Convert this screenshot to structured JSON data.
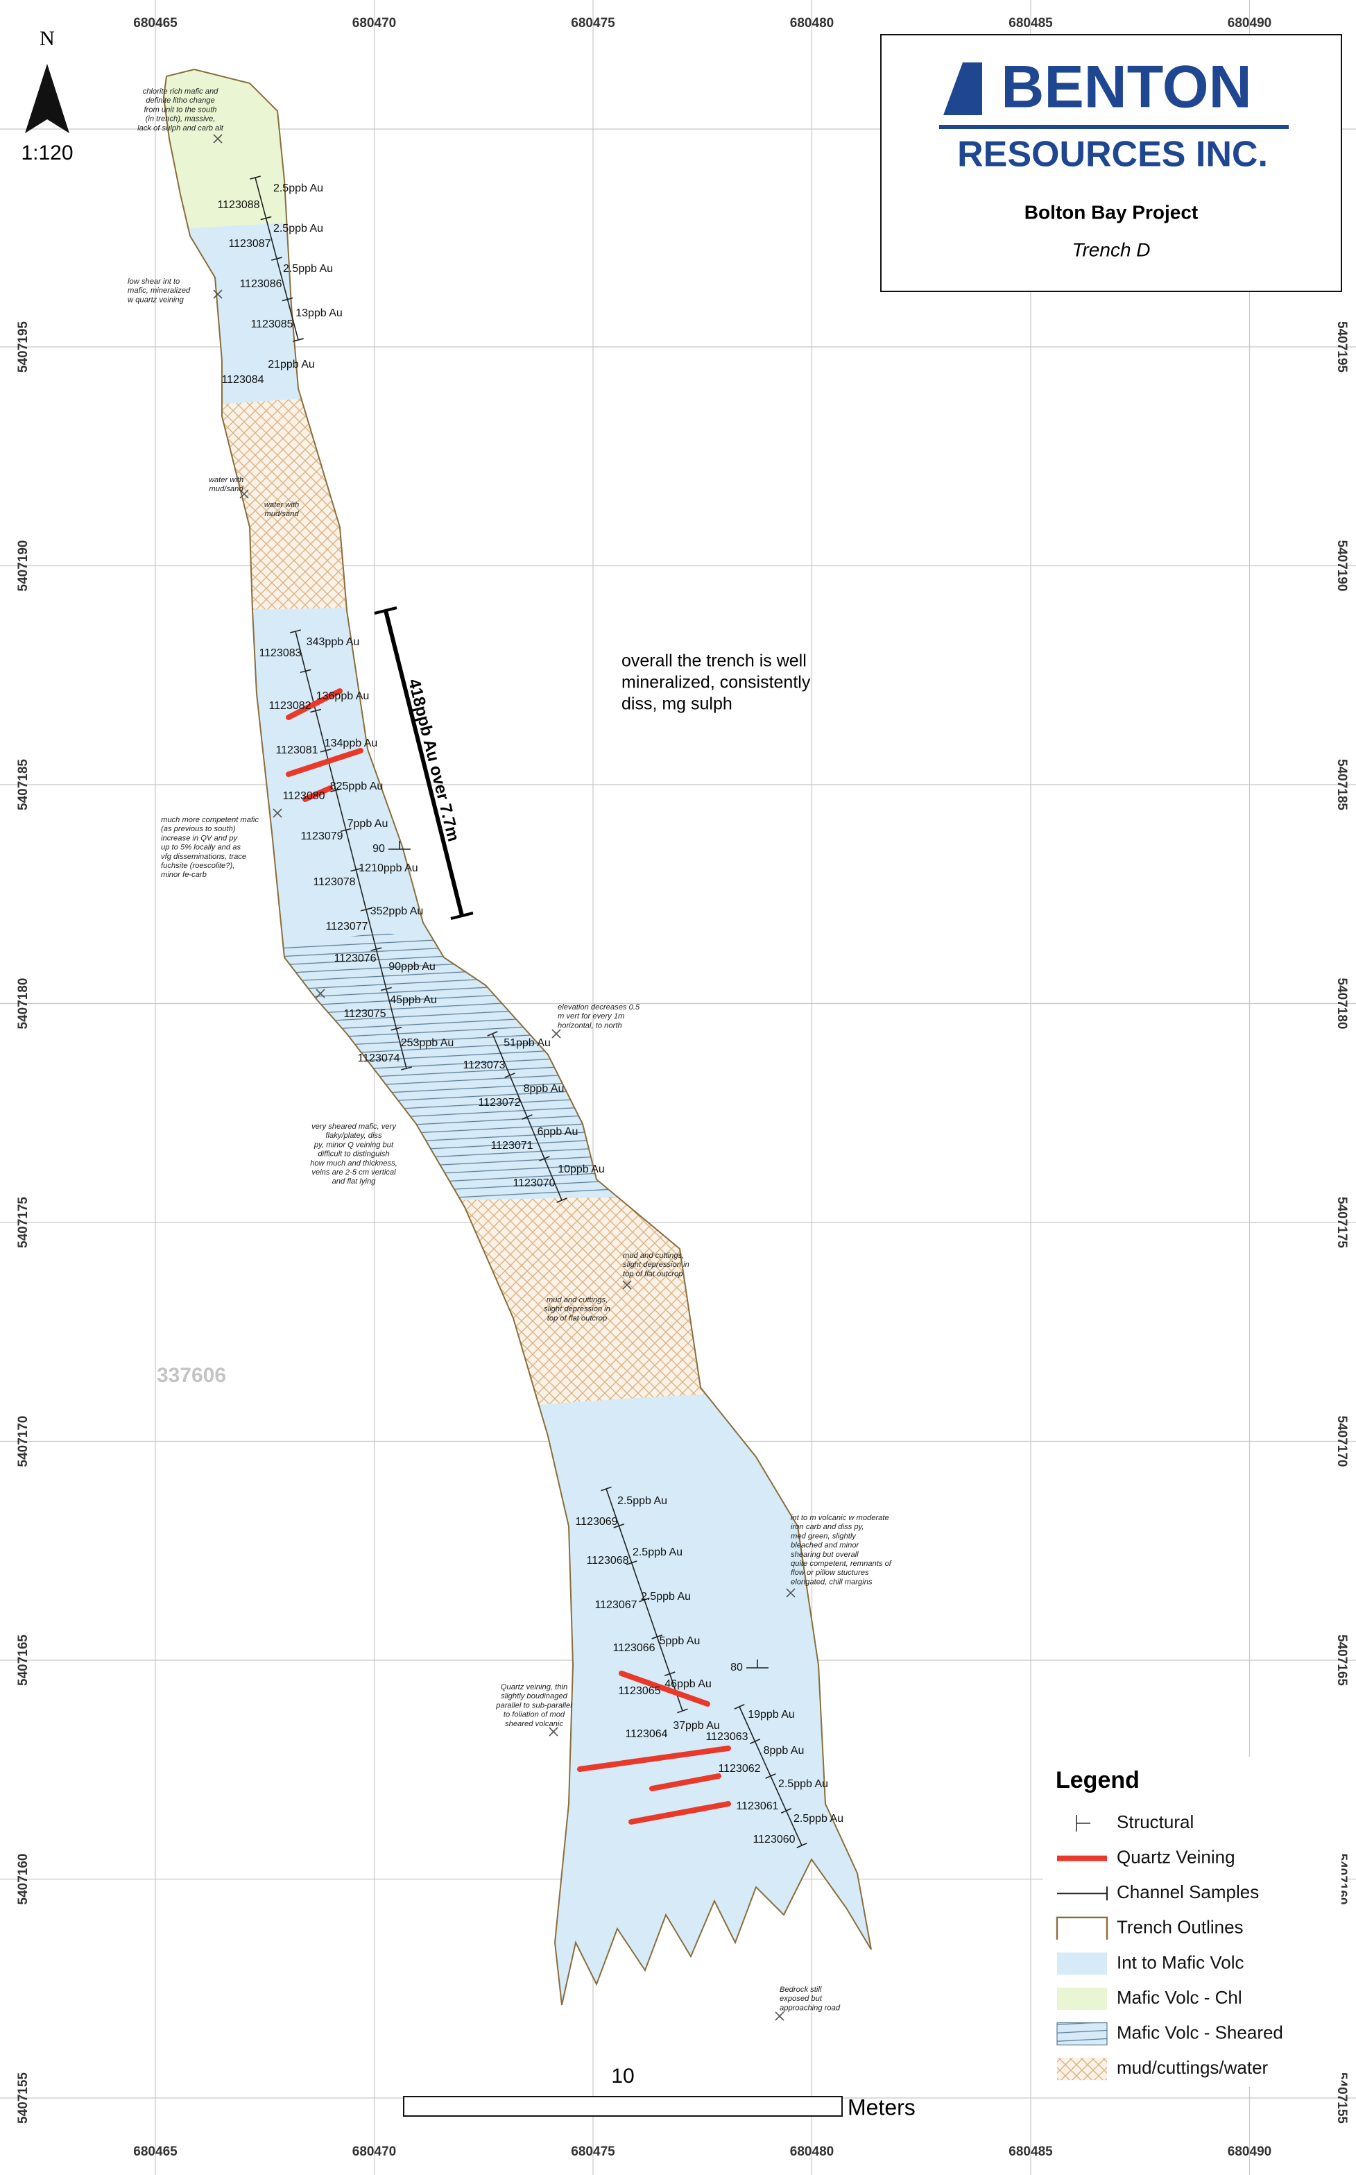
{
  "header": {
    "logo": "BENTON",
    "company": "RESOURCES INC.",
    "project": "Bolton Bay Project",
    "trench": "Trench D"
  },
  "north": {
    "label": "N",
    "scale": "1:120"
  },
  "grid": {
    "eastings": [
      680465,
      680470,
      680475,
      680480,
      680485,
      680490
    ],
    "northings": [
      5407195,
      5407190,
      5407185,
      5407180,
      5407175,
      5407170,
      5407165,
      5407160,
      5407155
    ]
  },
  "samples": [
    {
      "id": "1123088",
      "assay": "2.5ppb Au"
    },
    {
      "id": "1123087",
      "assay": "2.5ppb Au"
    },
    {
      "id": "1123086",
      "assay": "2.5ppb Au"
    },
    {
      "id": "1123085",
      "assay": "13ppb Au"
    },
    {
      "id": "1123084",
      "assay": "21ppb Au"
    },
    {
      "id": "1123083",
      "assay": "343ppb Au"
    },
    {
      "id": "1123082",
      "assay": "136ppb Au"
    },
    {
      "id": "1123081",
      "assay": "134ppb Au"
    },
    {
      "id": "1123080",
      "assay": "825ppb Au"
    },
    {
      "id": "1123079",
      "assay": "7ppb Au"
    },
    {
      "id": "1123078",
      "assay": "1210ppb Au"
    },
    {
      "id": "1123077",
      "assay": "352ppb Au"
    },
    {
      "id": "1123076",
      "assay": "90ppb Au"
    },
    {
      "id": "1123075",
      "assay": "45ppb Au"
    },
    {
      "id": "1123074",
      "assay": "253ppb Au"
    },
    {
      "id": "1123073",
      "assay": "51ppb Au"
    },
    {
      "id": "1123072",
      "assay": "8ppb Au"
    },
    {
      "id": "1123071",
      "assay": "6ppb Au"
    },
    {
      "id": "1123070",
      "assay": "10ppb Au"
    },
    {
      "id": "1123069",
      "assay": "2.5ppb Au"
    },
    {
      "id": "1123068",
      "assay": "2.5ppb Au"
    },
    {
      "id": "1123067",
      "assay": "2.5ppb Au"
    },
    {
      "id": "1123066",
      "assay": "5ppb Au"
    },
    {
      "id": "1123065",
      "assay": "46ppb Au"
    },
    {
      "id": "1123064",
      "assay": "37ppb Au"
    },
    {
      "id": "1123063",
      "assay": "19ppb Au"
    },
    {
      "id": "1123062",
      "assay": "8ppb Au"
    },
    {
      "id": "1123061",
      "assay": "2.5ppb Au"
    },
    {
      "id": "1123060",
      "assay": "2.5ppb Au"
    }
  ],
  "structures": [
    "90",
    "80"
  ],
  "notes": [
    [
      "chlorite rich mafic and",
      "definite litho change",
      "from unit to the south",
      "(in trench), massive,",
      "lack of sulph and carb alt"
    ],
    [
      "low shear int to",
      "mafic, mineralized",
      "w quartz veining"
    ],
    [
      "water with",
      "mud/sand"
    ],
    [
      "water with",
      "mud/sand"
    ],
    [
      "much more competent mafic",
      "(as previous to south)",
      "increase in QV and py",
      "up to 5% locally and as",
      "vfg disseminations, trace",
      "fuchsite (roescolite?),",
      "minor fe-carb"
    ],
    [
      "elevation decreases 0.5",
      "m vert for every 1m",
      "horizontal, to north"
    ],
    [
      "very sheared mafic, very",
      "flaky/platey, diss",
      "py, minor Q veining but",
      "difficult to distinguish",
      "how much and thickness,",
      "veins are 2-5 cm vertical",
      "and flat lying"
    ],
    [
      "mud and cuttings,",
      "slight depression in",
      "top of flat outcrop"
    ],
    [
      "mud and cuttings,",
      "slight depression in",
      "top of flat outcrop"
    ],
    [
      "int to m volcanic w moderate",
      "iron carb and diss py,",
      "med green, slightly",
      "bleached and minor",
      "shearing but overall",
      "quite competent, remnants of",
      "flow or pillow stuctures",
      "elongated, chill margins"
    ],
    [
      "Quartz veining, thin",
      "slightly boudinaged",
      "parallel to sub-parallel",
      "to foliation of mod",
      "sheared volcanic"
    ],
    [
      "Bedrock still",
      "exposed but",
      "approaching road"
    ]
  ],
  "summary": [
    "overall the trench is well",
    "mineralized, consistently",
    "diss, mg sulph"
  ],
  "intercept": "418ppb Au over 7.7m",
  "claim": "337606",
  "legend": {
    "title": "Legend",
    "items": [
      "Structural",
      "Quartz Veining",
      "Channel Samples",
      "Trench Outlines",
      "Int to Mafic Volc",
      "Mafic Volc - Chl",
      "Mafic Volc - Sheared",
      "mud/cuttings/water"
    ]
  },
  "scale_bar": {
    "length": "10",
    "unit": "Meters"
  }
}
